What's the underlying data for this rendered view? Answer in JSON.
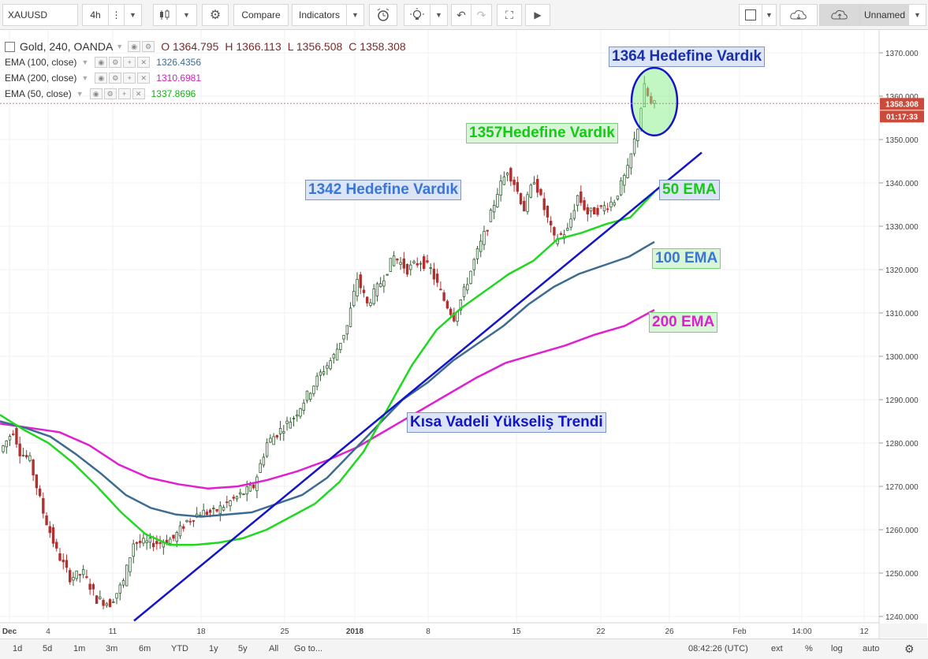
{
  "toolbar": {
    "symbol": "XAUUSD",
    "interval": "4h",
    "compare_label": "Compare",
    "indicators_label": "Indicators",
    "layout_name": "Unnamed"
  },
  "legend": {
    "main": {
      "name": "Gold, 240, OANDA",
      "open": "O 1364.795",
      "high": "H 1366.113",
      "low": "L 1356.508",
      "close": "C 1358.308"
    },
    "ema100": {
      "name": "EMA (100, close)",
      "value": "1326.4356",
      "color": "#3e6c8f"
    },
    "ema200": {
      "name": "EMA (200, close)",
      "value": "1310.6981",
      "color": "#e020d0"
    },
    "ema50": {
      "name": "EMA (50, close)",
      "value": "1337.8696",
      "color": "#1fd81f"
    }
  },
  "annotations": {
    "t1364": "1364 Hedefine Vardık",
    "t1357": "1357Hedefine Vardık",
    "t1342": "1342 Hedefine Vardık",
    "ema50": "50 EMA",
    "ema100": "100 EMA",
    "ema200": "200 EMA",
    "trend": "Kısa Vadeli Yükseliş Trendi"
  },
  "price_axis": {
    "ticks": [
      "1370.000",
      "1360.000",
      "1350.000",
      "1340.000",
      "1330.000",
      "1320.000",
      "1310.000",
      "1300.000",
      "1290.000",
      "1280.000",
      "1270.000",
      "1260.000",
      "1250.000",
      "1240.000"
    ],
    "last_price": "1358.308",
    "countdown": "01:17:33"
  },
  "time_axis": {
    "ticks": [
      "Dec",
      "4",
      "11",
      "18",
      "25",
      "2018",
      "8",
      "15",
      "22",
      "26",
      "Feb",
      "14:00",
      "12"
    ]
  },
  "bottombar": {
    "ranges": [
      "1d",
      "5d",
      "1m",
      "3m",
      "6m",
      "YTD",
      "1y",
      "5y",
      "All"
    ],
    "goto": "Go to...",
    "clock": "08:42:26 (UTC)",
    "options": [
      "ext",
      "%",
      "log",
      "auto"
    ]
  },
  "colors": {
    "up": "#2f5e2f",
    "down": "#b03030",
    "trendline": "#1414c8",
    "ellipse_stroke": "#1414c8",
    "ellipse_fill": "#90ee90"
  },
  "chart_data": {
    "type": "candlestick",
    "ylim": [
      1237,
      1375
    ],
    "x_ticks": [
      "Dec",
      "4",
      "11",
      "18",
      "25",
      "2018",
      "8",
      "15",
      "22",
      "26",
      "Feb",
      "14:00",
      "12"
    ],
    "ema50": [
      1286.5,
      1283,
      1280,
      1275.5,
      1270,
      1264,
      1259,
      1256.5,
      1256.5,
      1257,
      1258,
      1260,
      1263,
      1266,
      1271,
      1278,
      1288,
      1298,
      1306,
      1311,
      1315,
      1319,
      1322,
      1327,
      1328.5,
      1330.5,
      1332,
      1337.9
    ],
    "ema100": [
      1285,
      1283.5,
      1281.5,
      1277.5,
      1273,
      1268,
      1265,
      1263.5,
      1263,
      1263.5,
      1264,
      1266,
      1268,
      1272,
      1278,
      1284,
      1290,
      1294,
      1299,
      1303,
      1307,
      1312,
      1316,
      1319,
      1321,
      1323,
      1326.4
    ],
    "ema200": [
      1284.5,
      1283.5,
      1282.5,
      1279.5,
      1275,
      1272,
      1270.5,
      1269.5,
      1270,
      1271.5,
      1273.5,
      1276,
      1279,
      1283,
      1287,
      1291,
      1295,
      1298.5,
      1300.5,
      1302.5,
      1305,
      1307,
      1310.7
    ],
    "trendline": {
      "from": [
        1239,
        0.145
      ],
      "to": [
        1347,
        0.755
      ]
    },
    "highlight": {
      "price_low": 1351.5,
      "price_high": 1366
    }
  }
}
